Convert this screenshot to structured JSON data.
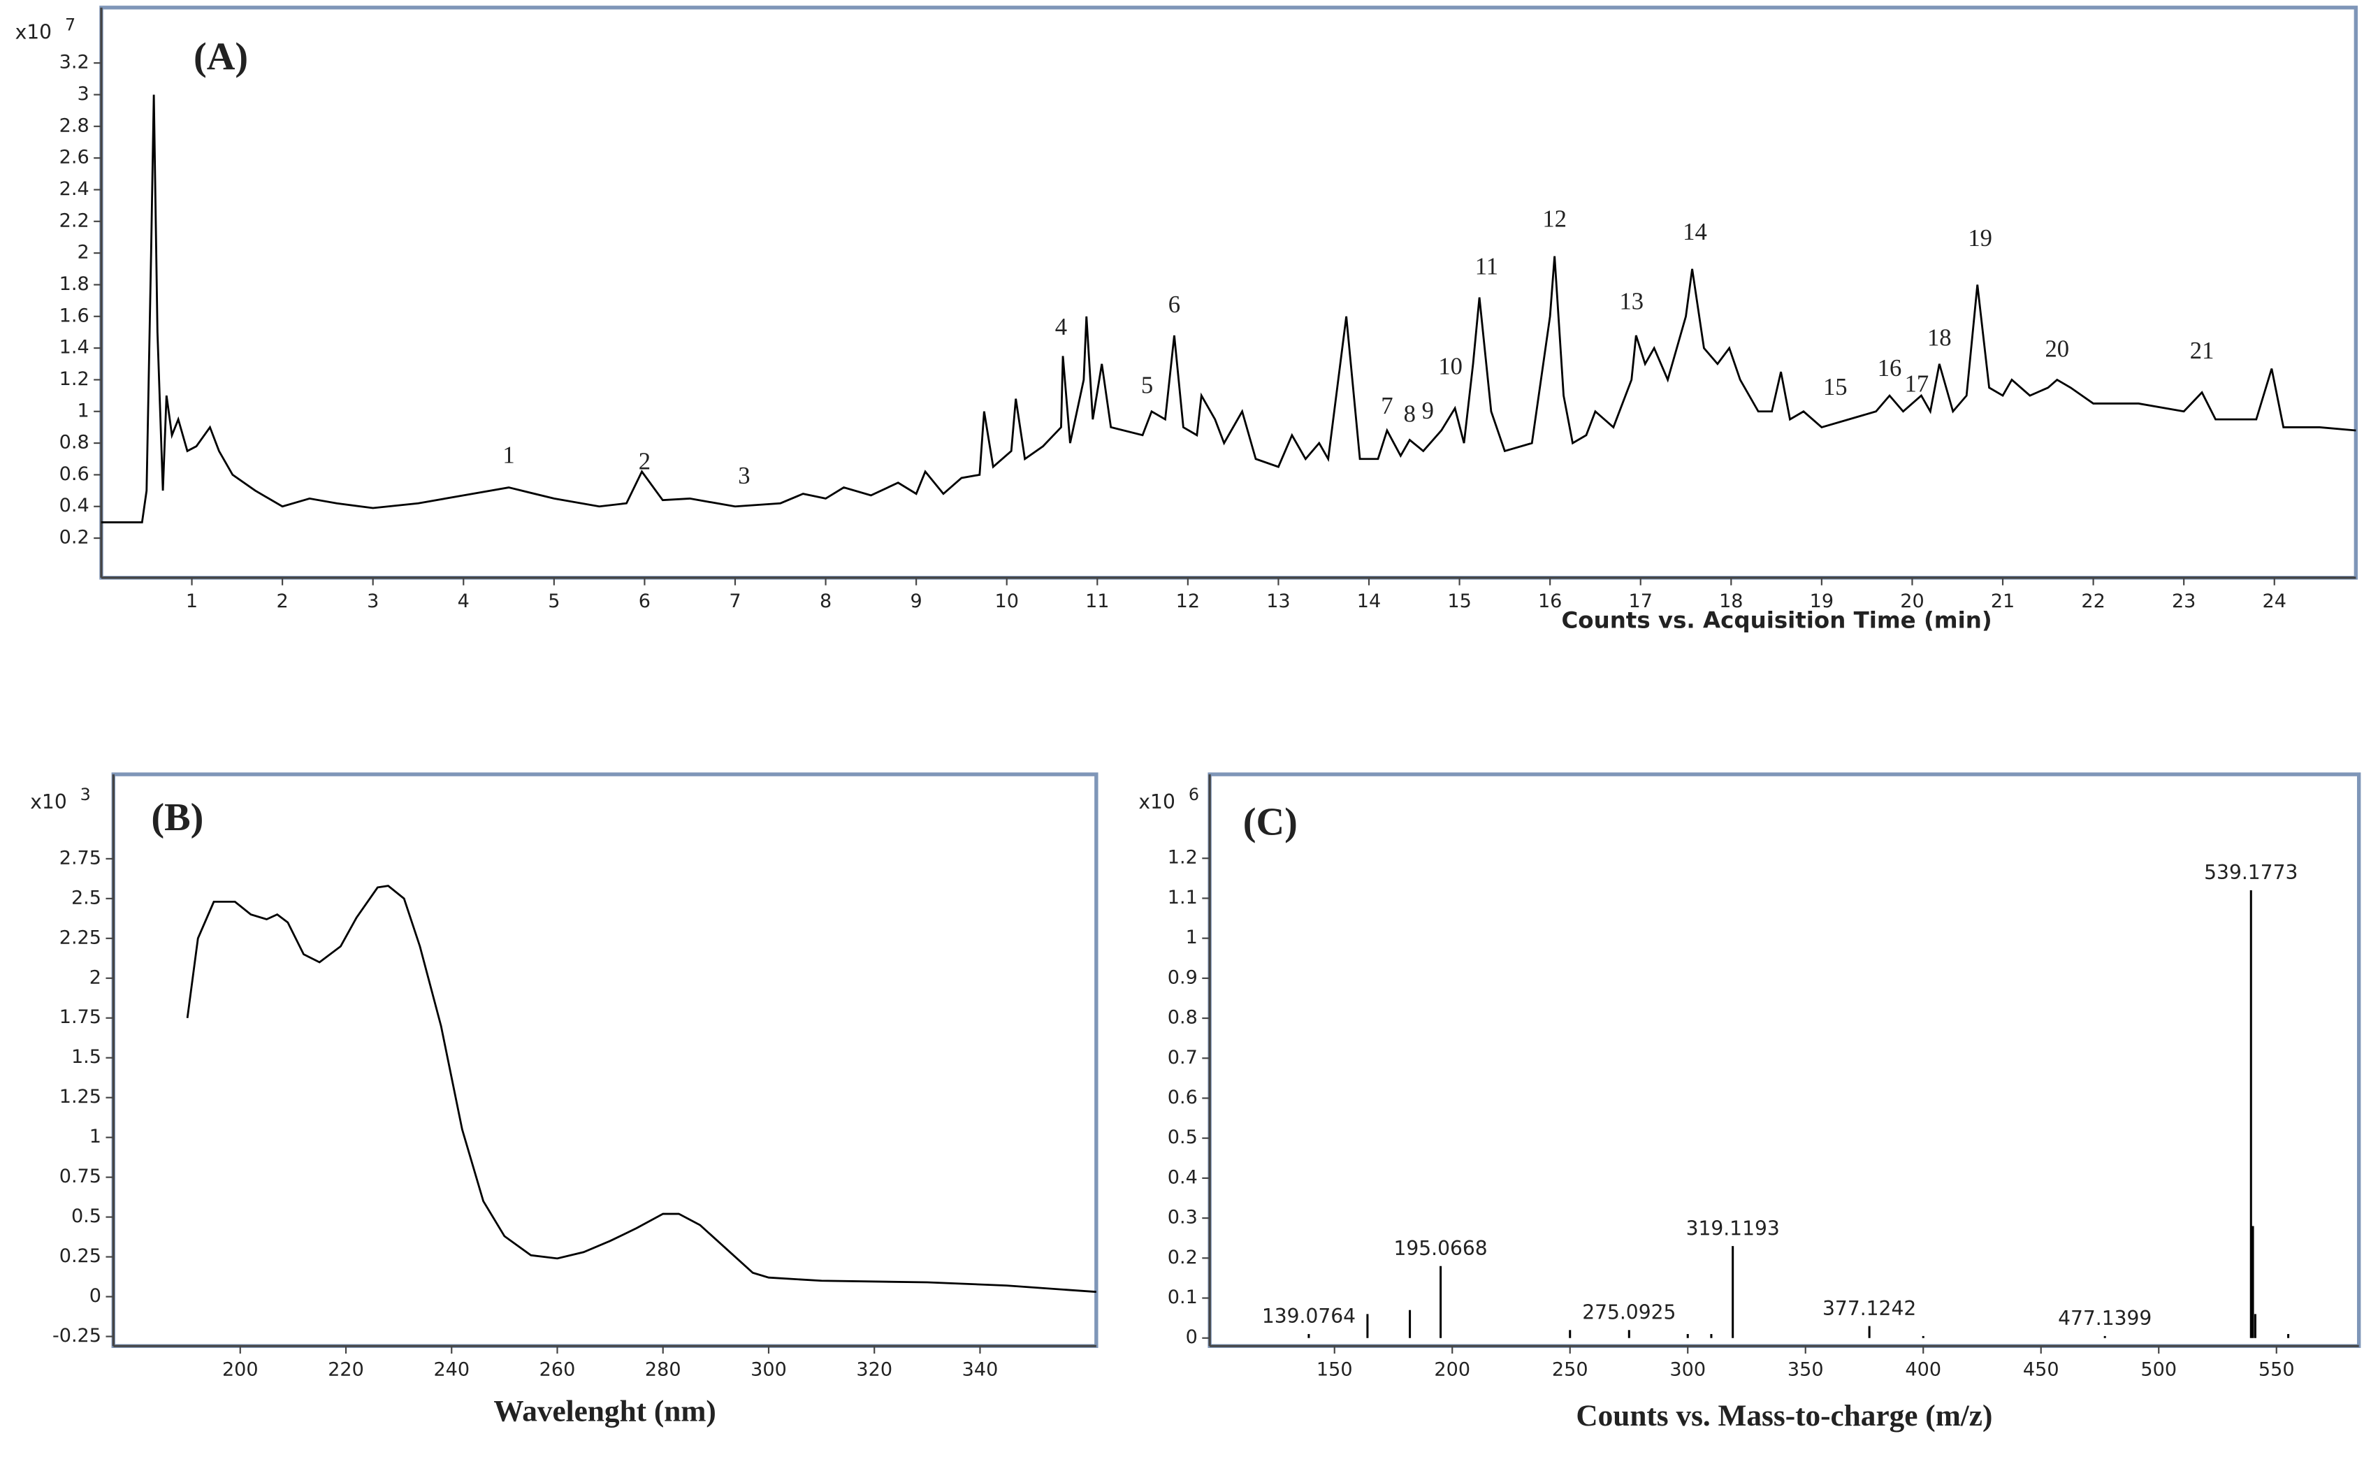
{
  "chart_data": [
    {
      "type": "line",
      "panel_label": "(A)",
      "xlabel": "Counts vs. Acquisition Time (min)",
      "y_multiplier": {
        "base": "x10",
        "exponent": "7"
      },
      "color": "#000000",
      "xlim": [
        0,
        24.9
      ],
      "xticks": [
        1,
        2,
        3,
        4,
        5,
        6,
        7,
        8,
        9,
        10,
        11,
        12,
        13,
        14,
        15,
        16,
        17,
        18,
        19,
        20,
        21,
        22,
        23,
        24
      ],
      "ylim": [
        -0.05,
        3.55
      ],
      "yticks": [
        0.2,
        0.4,
        0.6,
        0.8,
        1,
        1.2,
        1.4,
        1.6,
        1.8,
        2,
        2.2,
        2.4,
        2.6,
        2.8,
        3,
        3.2
      ],
      "x": [
        0.0,
        0.45,
        0.5,
        0.55,
        0.58,
        0.62,
        0.68,
        0.72,
        0.78,
        0.85,
        0.95,
        1.05,
        1.2,
        1.3,
        1.45,
        1.7,
        2.0,
        2.3,
        2.6,
        3.0,
        3.5,
        4.0,
        4.5,
        5.0,
        5.5,
        5.8,
        5.97,
        6.2,
        6.5,
        7.0,
        7.5,
        7.75,
        8.0,
        8.2,
        8.5,
        8.8,
        9.0,
        9.1,
        9.3,
        9.5,
        9.7,
        9.75,
        9.85,
        10.05,
        10.1,
        10.2,
        10.4,
        10.6,
        10.62,
        10.7,
        10.85,
        10.88,
        10.95,
        11.05,
        11.15,
        11.5,
        11.6,
        11.75,
        11.85,
        11.95,
        12.1,
        12.15,
        12.3,
        12.4,
        12.6,
        12.75,
        13.0,
        13.15,
        13.3,
        13.45,
        13.55,
        13.75,
        13.9,
        14.1,
        14.2,
        14.35,
        14.45,
        14.6,
        14.8,
        14.95,
        15.05,
        15.15,
        15.22,
        15.35,
        15.5,
        15.8,
        16.0,
        16.05,
        16.15,
        16.25,
        16.4,
        16.5,
        16.7,
        16.9,
        16.95,
        17.05,
        17.15,
        17.3,
        17.5,
        17.57,
        17.7,
        17.85,
        17.98,
        18.1,
        18.3,
        18.45,
        18.55,
        18.65,
        18.8,
        19.0,
        19.3,
        19.6,
        19.75,
        19.9,
        20.1,
        20.2,
        20.3,
        20.45,
        20.6,
        20.72,
        20.85,
        21.0,
        21.1,
        21.3,
        21.5,
        21.6,
        21.75,
        22.0,
        22.5,
        23.0,
        23.2,
        23.35,
        23.8,
        23.97,
        24.1,
        24.5,
        24.9
      ],
      "values": [
        0.3,
        0.3,
        0.5,
        2.0,
        3.0,
        1.5,
        0.5,
        1.1,
        0.85,
        0.95,
        0.75,
        0.78,
        0.9,
        0.75,
        0.6,
        0.5,
        0.4,
        0.45,
        0.42,
        0.39,
        0.42,
        0.47,
        0.52,
        0.45,
        0.4,
        0.42,
        0.62,
        0.44,
        0.45,
        0.4,
        0.42,
        0.48,
        0.45,
        0.52,
        0.47,
        0.55,
        0.48,
        0.62,
        0.48,
        0.58,
        0.6,
        1.0,
        0.65,
        0.75,
        1.08,
        0.7,
        0.78,
        0.9,
        1.35,
        0.8,
        1.2,
        1.6,
        0.95,
        1.3,
        0.9,
        0.85,
        1.0,
        0.95,
        1.48,
        0.9,
        0.85,
        1.1,
        0.95,
        0.8,
        1.0,
        0.7,
        0.65,
        0.85,
        0.7,
        0.8,
        0.7,
        1.6,
        0.7,
        0.7,
        0.88,
        0.72,
        0.82,
        0.75,
        0.88,
        1.02,
        0.8,
        1.3,
        1.72,
        1.0,
        0.75,
        0.8,
        1.6,
        1.98,
        1.1,
        0.8,
        0.85,
        1.0,
        0.9,
        1.2,
        1.48,
        1.3,
        1.4,
        1.2,
        1.6,
        1.9,
        1.4,
        1.3,
        1.4,
        1.2,
        1.0,
        1.0,
        1.25,
        0.95,
        1.0,
        0.9,
        0.95,
        1.0,
        1.1,
        1.0,
        1.1,
        1.0,
        1.3,
        1.0,
        1.1,
        1.8,
        1.15,
        1.1,
        1.2,
        1.1,
        1.15,
        1.2,
        1.15,
        1.05,
        1.05,
        1.0,
        1.12,
        0.95,
        0.95,
        1.27,
        0.9,
        0.9,
        0.88
      ],
      "annotations": [
        {
          "text": "1",
          "x": 4.5,
          "y": 0.71
        },
        {
          "text": "2",
          "x": 6.0,
          "y": 0.67
        },
        {
          "text": "3",
          "x": 7.1,
          "y": 0.58
        },
        {
          "text": "4",
          "x": 10.6,
          "y": 1.52
        },
        {
          "text": "5",
          "x": 11.55,
          "y": 1.15
        },
        {
          "text": "6",
          "x": 11.85,
          "y": 1.66
        },
        {
          "text": "7",
          "x": 14.2,
          "y": 1.02
        },
        {
          "text": "8",
          "x": 14.45,
          "y": 0.97
        },
        {
          "text": "9",
          "x": 14.65,
          "y": 0.99
        },
        {
          "text": "10",
          "x": 14.9,
          "y": 1.27
        },
        {
          "text": "11",
          "x": 15.3,
          "y": 1.9
        },
        {
          "text": "12",
          "x": 16.05,
          "y": 2.2
        },
        {
          "text": "13",
          "x": 16.9,
          "y": 1.68
        },
        {
          "text": "14",
          "x": 17.6,
          "y": 2.12
        },
        {
          "text": "15",
          "x": 19.15,
          "y": 1.14
        },
        {
          "text": "16",
          "x": 19.75,
          "y": 1.26
        },
        {
          "text": "17",
          "x": 20.05,
          "y": 1.16
        },
        {
          "text": "18",
          "x": 20.3,
          "y": 1.45
        },
        {
          "text": "19",
          "x": 20.75,
          "y": 2.08
        },
        {
          "text": "20",
          "x": 21.6,
          "y": 1.38
        },
        {
          "text": "21",
          "x": 23.2,
          "y": 1.37
        }
      ]
    },
    {
      "type": "line",
      "panel_label": "(B)",
      "xlabel": "Wavelenght (nm)",
      "y_multiplier": {
        "base": "x10",
        "exponent": "3"
      },
      "color": "#000000",
      "xlim": [
        176,
        362
      ],
      "xticks": [
        200,
        220,
        240,
        260,
        280,
        300,
        320,
        340
      ],
      "ylim": [
        -0.31,
        3.28
      ],
      "yticks": [
        -0.25,
        0,
        0.25,
        0.5,
        0.75,
        1,
        1.25,
        1.5,
        1.75,
        2,
        2.25,
        2.5,
        2.75
      ],
      "x": [
        190,
        192,
        195,
        199,
        202,
        205,
        207,
        209,
        212,
        215,
        219,
        222,
        226,
        228,
        231,
        234,
        238,
        242,
        246,
        250,
        255,
        260,
        265,
        270,
        275,
        280,
        283,
        287,
        292,
        297,
        300,
        310,
        330,
        345,
        362
      ],
      "values": [
        1.75,
        2.25,
        2.48,
        2.48,
        2.4,
        2.37,
        2.4,
        2.35,
        2.15,
        2.1,
        2.2,
        2.38,
        2.57,
        2.58,
        2.5,
        2.2,
        1.7,
        1.05,
        0.6,
        0.38,
        0.26,
        0.24,
        0.28,
        0.35,
        0.43,
        0.52,
        0.52,
        0.45,
        0.3,
        0.15,
        0.12,
        0.1,
        0.09,
        0.07,
        0.03
      ]
    },
    {
      "type": "stem",
      "panel_label": "(C)",
      "xlabel": "Counts vs. Mass-to-charge (m/z)",
      "y_multiplier": {
        "base": "x10",
        "exponent": "6"
      },
      "xlim": [
        97,
        585
      ],
      "xticks": [
        150,
        200,
        250,
        300,
        350,
        400,
        450,
        500,
        550
      ],
      "ylim": [
        -0.02,
        1.41
      ],
      "yticks": [
        0,
        0.1,
        0.2,
        0.3,
        0.4,
        0.5,
        0.6,
        0.7,
        0.8,
        0.9,
        1,
        1.1,
        1.2
      ],
      "series": [
        {
          "color": "#000000",
          "show_labels": true,
          "x": [
            139.0764,
            195.0668,
            275.0925,
            319.1193,
            377.1242,
            477.1399,
            539.1773
          ],
          "values": [
            0.01,
            0.18,
            0.02,
            0.23,
            0.03,
            0.005,
            1.12
          ]
        },
        {
          "color": "#000000",
          "show_labels": false,
          "x": [
            164,
            182,
            250,
            300,
            310,
            400,
            540,
            541,
            555
          ],
          "values": [
            0.06,
            0.07,
            0.02,
            0.01,
            0.01,
            0.005,
            0.28,
            0.06,
            0.01
          ]
        }
      ]
    }
  ]
}
